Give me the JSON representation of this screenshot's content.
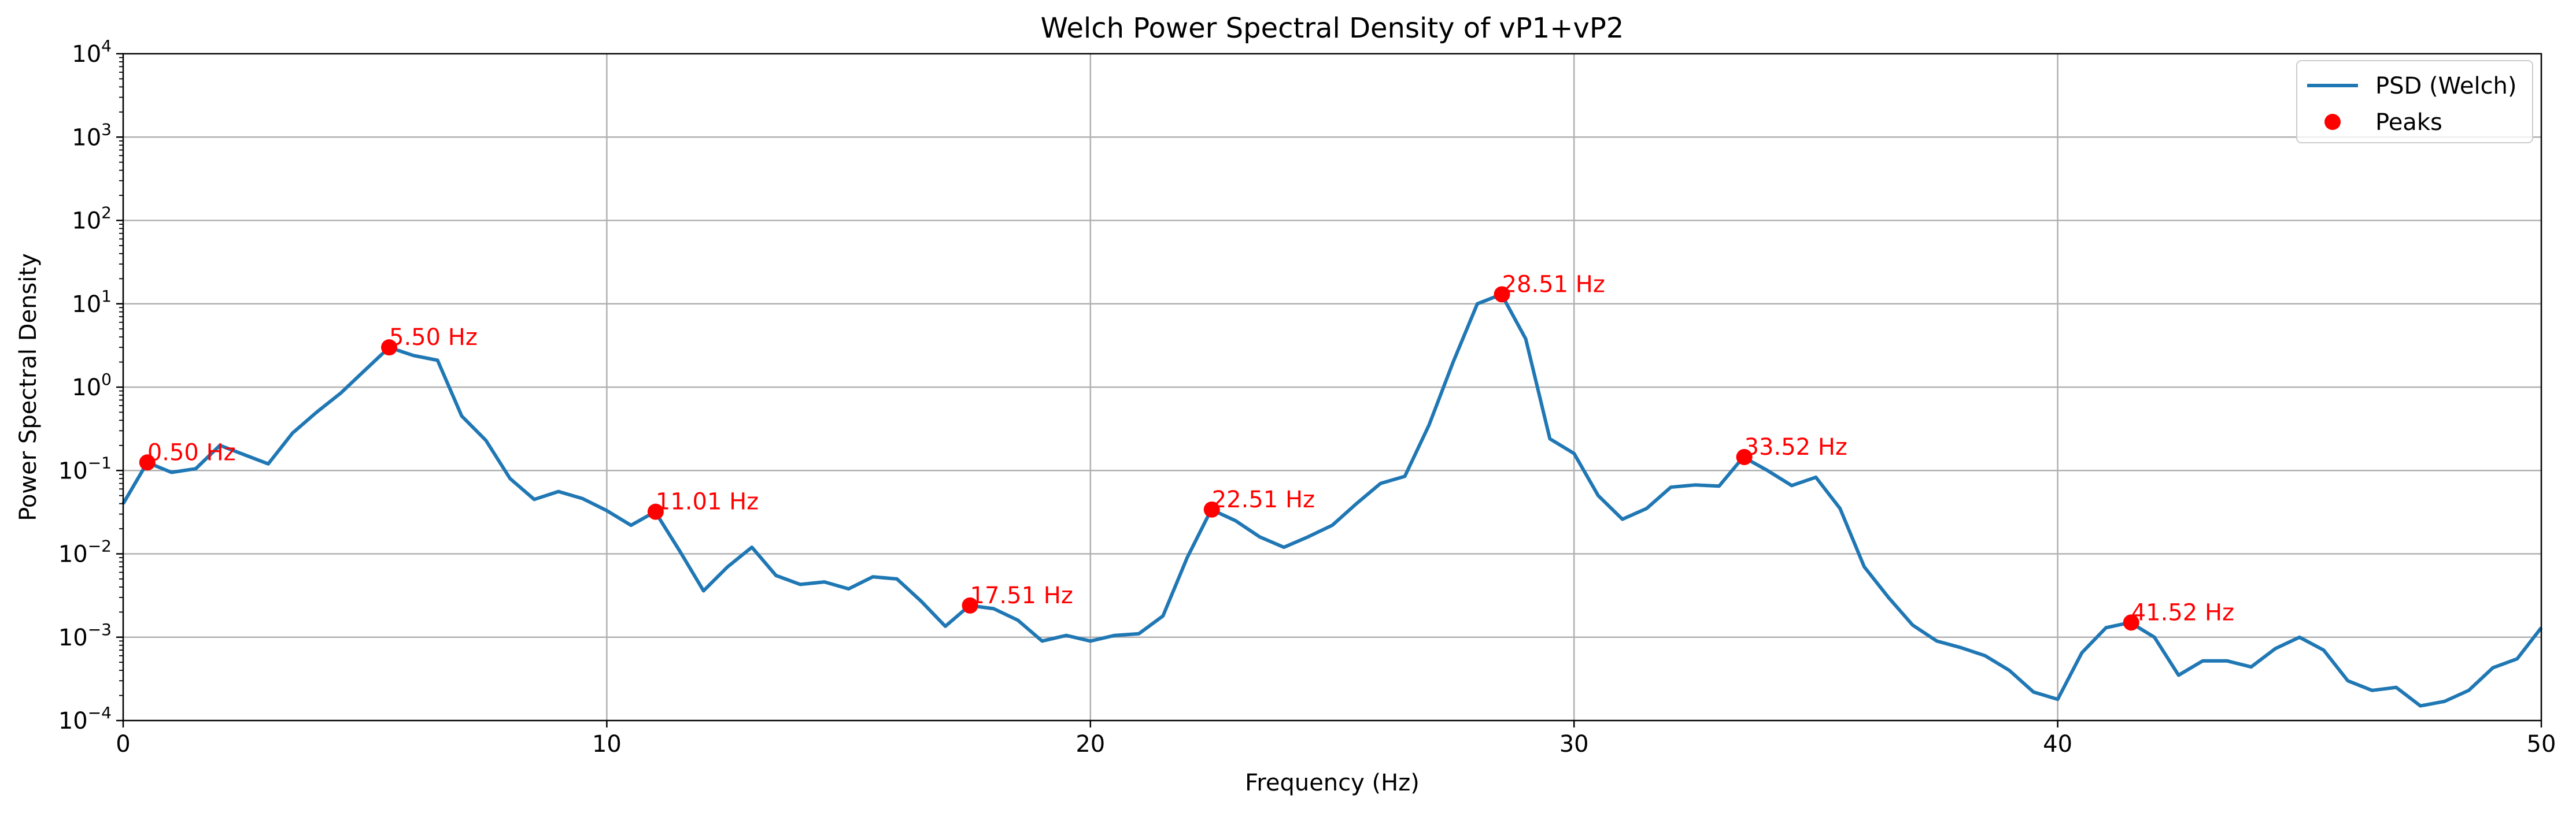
{
  "chart_data": {
    "type": "line",
    "title": "Welch Power Spectral Density of vP1+vP2",
    "xlabel": "Frequency (Hz)",
    "ylabel": "Power Spectral Density",
    "xlim": [
      0,
      50
    ],
    "ylim": [
      0.0001,
      10000
    ],
    "yscale": "log",
    "grid": true,
    "legend_position": "top-right",
    "xticks": [
      "0",
      "10",
      "20",
      "30",
      "40",
      "50"
    ],
    "ytick_mantissa": "10",
    "ytick_exponents": [
      "−4",
      "−3",
      "−2",
      "−1",
      "0",
      "1",
      "2",
      "3",
      "4"
    ],
    "colors": {
      "line": "#1f77b4",
      "peaks": "#ff0000",
      "grid": "#b0b0b0"
    },
    "series": [
      {
        "name": "PSD (Welch)",
        "x": [
          0,
          0.5,
          1,
          1.5,
          2,
          2.5,
          3,
          3.5,
          4,
          4.5,
          5,
          5.5,
          6,
          6.5,
          7,
          7.5,
          8,
          8.5,
          9,
          9.5,
          10,
          10.5,
          11,
          11.5,
          12,
          12.5,
          13,
          13.5,
          14,
          14.5,
          15,
          15.5,
          16,
          16.5,
          17,
          17.5,
          18,
          18.5,
          19,
          19.5,
          20,
          20.5,
          21,
          21.5,
          22,
          22.5,
          23,
          23.5,
          24,
          24.5,
          25,
          25.5,
          26,
          26.5,
          27,
          27.5,
          28,
          28.5,
          29,
          29.5,
          30,
          30.5,
          31,
          31.5,
          32,
          32.5,
          33,
          33.5,
          34,
          34.5,
          35,
          35.5,
          36,
          36.5,
          37,
          37.5,
          38,
          38.5,
          39,
          39.5,
          40,
          40.5,
          41,
          41.5,
          42,
          42.5,
          43,
          43.5,
          44,
          44.5,
          45,
          45.5,
          46,
          46.5,
          47,
          47.5,
          48,
          48.5,
          49,
          49.5,
          50
        ],
        "y": [
          0.04,
          0.125,
          0.095,
          0.105,
          0.2,
          0.155,
          0.12,
          0.28,
          0.5,
          0.85,
          1.6,
          3.0,
          2.4,
          2.1,
          0.45,
          0.23,
          0.08,
          0.045,
          0.056,
          0.046,
          0.033,
          0.022,
          0.032,
          0.011,
          0.0036,
          0.007,
          0.012,
          0.0055,
          0.0043,
          0.0046,
          0.0038,
          0.0053,
          0.005,
          0.0027,
          0.00135,
          0.0024,
          0.0022,
          0.0016,
          0.0009,
          0.00105,
          0.0009,
          0.00105,
          0.0011,
          0.0018,
          0.009,
          0.034,
          0.025,
          0.016,
          0.012,
          0.016,
          0.022,
          0.04,
          0.07,
          0.085,
          0.35,
          2.0,
          10.0,
          13.0,
          3.8,
          0.24,
          0.16,
          0.05,
          0.026,
          0.035,
          0.063,
          0.067,
          0.065,
          0.145,
          0.1,
          0.066,
          0.083,
          0.035,
          0.007,
          0.003,
          0.0014,
          0.0009,
          0.00075,
          0.0006,
          0.0004,
          0.00022,
          0.00018,
          0.00065,
          0.0013,
          0.0015,
          0.001,
          0.00035,
          0.00052,
          0.00052,
          0.00044,
          0.00073,
          0.001,
          0.0007,
          0.0003,
          0.00023,
          0.00025,
          0.00015,
          0.00017,
          0.00023,
          0.00043,
          0.00055,
          0.0013
        ]
      },
      {
        "name": "Peaks",
        "x": [
          0.5,
          5.5,
          11.01,
          17.51,
          22.51,
          28.51,
          33.52,
          41.52
        ],
        "y": [
          0.125,
          3.0,
          0.032,
          0.0024,
          0.034,
          13.0,
          0.145,
          0.0015
        ],
        "labels": [
          "0.50 Hz",
          "5.50 Hz",
          "11.01 Hz",
          "17.51 Hz",
          "22.51 Hz",
          "28.51 Hz",
          "33.52 Hz",
          "41.52 Hz"
        ]
      }
    ]
  }
}
